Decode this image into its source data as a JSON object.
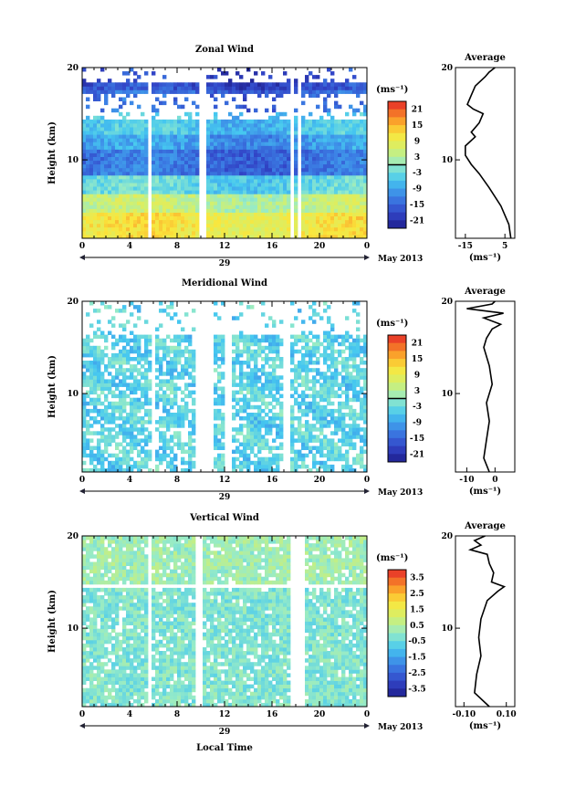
{
  "figure": {
    "date_label": "May 2013",
    "day_label": "29",
    "x_axis_title": "Local Time",
    "unit_label": "(ms⁻¹)",
    "average_title": "Average",
    "height_label": "Height (km)"
  },
  "chart_data": [
    {
      "type": "heatmap",
      "title": "Zonal Wind",
      "ylabel": "Height (km)",
      "xlabel": "Local Time",
      "x_ticks": [
        "0",
        "4",
        "8",
        "12",
        "16",
        "20",
        "0"
      ],
      "xlim": [
        0,
        24
      ],
      "ylim": [
        1.5,
        20
      ],
      "y_ticks": [
        "20",
        "10"
      ],
      "colorbar": {
        "unit": "(ms⁻¹)",
        "ticks": [
          "21",
          "15",
          "9",
          "3",
          "-3",
          "-9",
          "-15",
          "-21"
        ],
        "range": [
          -24,
          24
        ]
      },
      "data_gaps_hours": [
        [
          5.5,
          6.0
        ],
        [
          10.0,
          10.5
        ],
        [
          17.5,
          17.8
        ],
        [
          18.2,
          18.6
        ]
      ],
      "profile": {
        "title": "Average",
        "x_ticks": [
          "-15",
          "5"
        ],
        "xlim": [
          -20,
          10
        ],
        "xlabel": "(ms⁻¹)",
        "height": [
          1.5,
          3,
          5,
          7,
          8.5,
          9.5,
          10.5,
          11.5,
          12.5,
          13,
          14,
          15,
          15.5,
          16,
          17,
          18,
          19,
          19.5,
          20
        ],
        "value": [
          8,
          7,
          3,
          -3,
          -8,
          -12,
          -15,
          -15,
          -10,
          -12,
          -8,
          -6,
          -11,
          -14,
          -12,
          -10,
          -5,
          -3,
          0
        ]
      }
    },
    {
      "type": "heatmap",
      "title": "Meridional Wind",
      "ylabel": "Height (km)",
      "xlabel": "Local Time",
      "x_ticks": [
        "0",
        "4",
        "8",
        "12",
        "16",
        "20",
        "0"
      ],
      "xlim": [
        0,
        24
      ],
      "ylim": [
        1.5,
        20
      ],
      "y_ticks": [
        "20",
        "10"
      ],
      "colorbar": {
        "unit": "(ms⁻¹)",
        "ticks": [
          "21",
          "15",
          "9",
          "3",
          "-3",
          "-9",
          "-15",
          "-21"
        ],
        "range": [
          -24,
          24
        ]
      },
      "data_gaps_hours": [
        [
          5.8,
          6.2
        ],
        [
          9.5,
          11.0
        ],
        [
          12.0,
          12.5
        ],
        [
          17.0,
          17.5
        ]
      ],
      "profile": {
        "title": "Average",
        "x_ticks": [
          "-10",
          "0"
        ],
        "xlim": [
          -14,
          7
        ],
        "xlabel": "(ms⁻¹)",
        "height": [
          1.5,
          3,
          5,
          7,
          9,
          11,
          13,
          15,
          16,
          17,
          17.5,
          18.2,
          18.7,
          19.2,
          19.7,
          20
        ],
        "value": [
          -2,
          -4,
          -3,
          -2,
          -3,
          -1,
          -2,
          -4,
          -3,
          -1,
          2,
          -4,
          3,
          -10,
          -1,
          0
        ]
      }
    },
    {
      "type": "heatmap",
      "title": "Vertical Wind",
      "ylabel": "Height (km)",
      "xlabel": "Local Time",
      "x_ticks": [
        "0",
        "4",
        "8",
        "12",
        "16",
        "20",
        "0"
      ],
      "xlim": [
        0,
        24
      ],
      "ylim": [
        1.5,
        20
      ],
      "y_ticks": [
        "20",
        "10"
      ],
      "colorbar": {
        "unit": "(ms⁻¹)",
        "ticks": [
          "3.5",
          "2.5",
          "1.5",
          "0.5",
          "-0.5",
          "-1.5",
          "-2.5",
          "-3.5"
        ],
        "range": [
          -4,
          4
        ]
      },
      "data_gaps_hours": [
        [
          5.4,
          5.9
        ],
        [
          9.5,
          10.0
        ],
        [
          17.6,
          18.0
        ],
        [
          18.3,
          18.8
        ]
      ],
      "profile": {
        "title": "Average",
        "x_ticks": [
          "-0.10",
          "0.10"
        ],
        "xlim": [
          -0.14,
          0.14
        ],
        "xlabel": "(ms⁻¹)",
        "height": [
          1.5,
          3,
          5,
          7,
          9,
          11,
          13,
          14,
          14.5,
          15,
          16,
          17,
          18,
          18.5,
          19,
          19.5,
          20
        ],
        "value": [
          0.02,
          -0.05,
          -0.04,
          -0.02,
          -0.03,
          -0.02,
          0.01,
          0.06,
          0.09,
          0.03,
          0.04,
          0.02,
          0.01,
          -0.07,
          -0.02,
          -0.05,
          0.0
        ]
      }
    }
  ]
}
